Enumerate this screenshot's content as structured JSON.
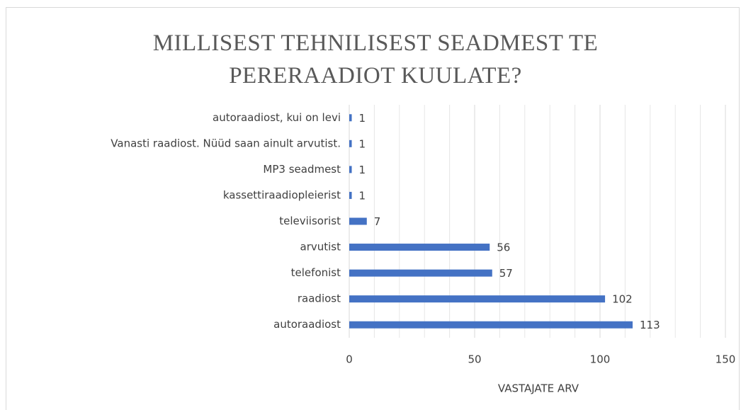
{
  "chart_data": {
    "type": "hbar",
    "title": "MILLISEST TEHNILISEST SEADMEST TE PERERAADIOT KUULATE?",
    "x_label": "VASTAJATE ARV",
    "categories": [
      "autoraadiost, kui on levi",
      "Vanasti raadiost. Nüüd saan ainult arvutist.",
      "MP3 seadmest",
      "kassettiraadiopleierist",
      "televiisorist",
      "arvutist",
      "telefonist",
      "raadiost",
      "autoraadiost"
    ],
    "values": [
      1,
      1,
      1,
      1,
      7,
      56,
      57,
      102,
      113
    ],
    "color": "#4472c4",
    "xlim": [
      0,
      150
    ],
    "xticks": [
      0,
      50,
      100,
      150
    ],
    "xgrid_minor": [
      10,
      20,
      30,
      40,
      60,
      70,
      80,
      90,
      110,
      120,
      130,
      140
    ],
    "grid": true
  }
}
